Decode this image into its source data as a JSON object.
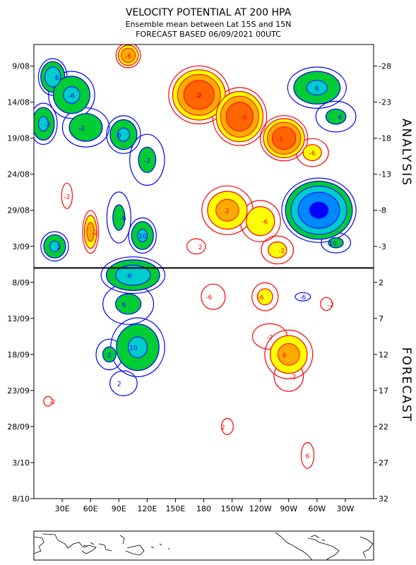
{
  "chart_data": {
    "type": "heatmap",
    "subtype": "hovmoller-filled-contour",
    "title": "VELOCITY POTENTIAL AT 200 HPA",
    "subtitle": "Ensemble mean between  Lat 15S and 15N",
    "subtitle2": "FORECAST  BASED 06/09/2021 00UTC",
    "x_ticks": [
      "30E",
      "60E",
      "90E",
      "120E",
      "150E",
      "180",
      "150W",
      "120W",
      "90W",
      "60W",
      "30W"
    ],
    "x_tick_lon": [
      30,
      60,
      90,
      120,
      150,
      180,
      210,
      240,
      270,
      300,
      330
    ],
    "xlim": [
      0,
      360
    ],
    "y_ticks_left": [
      "9/08",
      "14/08",
      "19/08",
      "24/08",
      "29/08",
      "3/09",
      "8/09",
      "13/09",
      "18/09",
      "23/09",
      "28/09",
      "3/10",
      "8/10"
    ],
    "y_ticks_right": [
      "-28",
      "-23",
      "-18",
      "-13",
      "-8",
      "-3",
      "2",
      "7",
      "12",
      "17",
      "22",
      "27",
      "32"
    ],
    "y_tick_day": [
      -28,
      -23,
      -18,
      -13,
      -8,
      -3,
      2,
      7,
      12,
      17,
      22,
      27,
      32
    ],
    "ylim": [
      -31,
      32
    ],
    "forecast_split_day": 0,
    "side_labels": {
      "top": "ANALYSIS",
      "bottom": "FORECAST"
    },
    "contour_levels": [
      -10,
      -8,
      -6,
      -4,
      -2,
      2,
      4,
      6,
      8,
      10,
      12
    ],
    "contour_labels": [
      "-6",
      "-2",
      "-6",
      "-2",
      "-6",
      "6",
      "-6",
      "2",
      "-2",
      "6",
      "-6",
      "-2",
      "6",
      "10",
      "2",
      "10",
      "6",
      "-6",
      "-2",
      "-6",
      "-2",
      "-6",
      "-2",
      "-6",
      "6",
      "2",
      "6",
      "-10",
      "-2",
      "2",
      "-6",
      "-2",
      "-2",
      "2",
      "-6",
      "-2",
      "2",
      "6",
      "-2",
      "2",
      "2"
    ],
    "colors": {
      "neg_1": "#00cc33",
      "neg_2": "#00cccc",
      "neg_3": "#0088ff",
      "neg_4": "#0000ff",
      "pos_1": "#ffff00",
      "pos_2": "#ffaa00",
      "pos_3": "#ff6600",
      "pos_4": "#ff2200",
      "neg_line": "#0000ff",
      "pos_line": "#ff0000",
      "split_line": "#000000"
    },
    "features": [
      {
        "sign": "neg",
        "lon": 20,
        "day": -26.5,
        "rx": 18,
        "ry": 3,
        "peak": 7
      },
      {
        "sign": "neg",
        "lon": 40,
        "day": -24,
        "rx": 30,
        "ry": 4,
        "peak": 6
      },
      {
        "sign": "neg",
        "lon": 10,
        "day": -20,
        "rx": 18,
        "ry": 3.5,
        "peak": 6
      },
      {
        "sign": "neg",
        "lon": 55,
        "day": -19.5,
        "rx": 32,
        "ry": 3.5,
        "peak": 5
      },
      {
        "sign": "neg",
        "lon": 95,
        "day": -18.5,
        "rx": 22,
        "ry": 3.2,
        "peak": 6
      },
      {
        "sign": "neg",
        "lon": 120,
        "day": -15,
        "rx": 26,
        "ry": 5,
        "peak": 4
      },
      {
        "sign": "neg",
        "lon": 90,
        "day": -7,
        "rx": 18,
        "ry": 5,
        "peak": 4
      },
      {
        "sign": "neg",
        "lon": 115,
        "day": -4.5,
        "rx": 18,
        "ry": 3,
        "peak": 6
      },
      {
        "sign": "neg",
        "lon": 22,
        "day": -3,
        "rx": 18,
        "ry": 2.5,
        "peak": 6
      },
      {
        "sign": "neg",
        "lon": 105,
        "day": 1,
        "rx": 40,
        "ry": 3,
        "peak": 7
      },
      {
        "sign": "neg",
        "lon": 100,
        "day": 5,
        "rx": 38,
        "ry": 4,
        "peak": 4
      },
      {
        "sign": "neg",
        "lon": 110,
        "day": 11,
        "rx": 35,
        "ry": 5,
        "peak": 6
      },
      {
        "sign": "neg",
        "lon": 80,
        "day": 12,
        "rx": 20,
        "ry": 3,
        "peak": 4
      },
      {
        "sign": "neg",
        "lon": 95,
        "day": 16,
        "rx": 25,
        "ry": 3,
        "peak": 3
      },
      {
        "sign": "neg",
        "lon": 300,
        "day": -25,
        "rx": 38,
        "ry": 3.5,
        "peak": 6
      },
      {
        "sign": "neg",
        "lon": 320,
        "day": -21,
        "rx": 30,
        "ry": 3,
        "peak": 4
      },
      {
        "sign": "neg",
        "lon": 302,
        "day": -8,
        "rx": 44,
        "ry": 5,
        "peak": 10
      },
      {
        "sign": "neg",
        "lon": 320,
        "day": -3.5,
        "rx": 22,
        "ry": 2,
        "peak": 4
      },
      {
        "sign": "neg",
        "lon": 285,
        "day": 4,
        "rx": 14,
        "ry": 1,
        "peak": 3
      },
      {
        "sign": "pos",
        "lon": 100,
        "day": -29.5,
        "rx": 15,
        "ry": 2,
        "peak": 8
      },
      {
        "sign": "pos",
        "lon": 175,
        "day": -24,
        "rx": 36,
        "ry": 4.5,
        "peak": 10
      },
      {
        "sign": "pos",
        "lon": 218,
        "day": -21,
        "rx": 32,
        "ry": 4.5,
        "peak": 10
      },
      {
        "sign": "pos",
        "lon": 265,
        "day": -18,
        "rx": 28,
        "ry": 3.5,
        "peak": 10
      },
      {
        "sign": "pos",
        "lon": 295,
        "day": -16,
        "rx": 22,
        "ry": 2.5,
        "peak": 5
      },
      {
        "sign": "pos",
        "lon": 205,
        "day": -8,
        "rx": 32,
        "ry": 4,
        "peak": 7
      },
      {
        "sign": "pos",
        "lon": 240,
        "day": -6.5,
        "rx": 26,
        "ry": 3.5,
        "peak": 6
      },
      {
        "sign": "pos",
        "lon": 258,
        "day": -2.5,
        "rx": 22,
        "ry": 2.5,
        "peak": 5
      },
      {
        "sign": "pos",
        "lon": 60,
        "day": -5,
        "rx": 10,
        "ry": 3.5,
        "peak": 7
      },
      {
        "sign": "pos",
        "lon": 35,
        "day": -10,
        "rx": 8,
        "ry": 2.5,
        "peak": 4
      },
      {
        "sign": "pos",
        "lon": 172,
        "day": -3,
        "rx": 14,
        "ry": 1.5,
        "peak": 4
      },
      {
        "sign": "pos",
        "lon": 245,
        "day": 4,
        "rx": 18,
        "ry": 2.5,
        "peak": 5
      },
      {
        "sign": "pos",
        "lon": 190,
        "day": 4,
        "rx": 18,
        "ry": 2.5,
        "peak": 4
      },
      {
        "sign": "pos",
        "lon": 270,
        "day": 12,
        "rx": 30,
        "ry": 4,
        "peak": 7
      },
      {
        "sign": "pos",
        "lon": 250,
        "day": 9.5,
        "rx": 26,
        "ry": 2.5,
        "peak": 4
      },
      {
        "sign": "pos",
        "lon": 270,
        "day": 15,
        "rx": 22,
        "ry": 3,
        "peak": 4
      },
      {
        "sign": "pos",
        "lon": 310,
        "day": 5,
        "rx": 14,
        "ry": 2,
        "peak": 2.5
      },
      {
        "sign": "pos",
        "lon": 205,
        "day": 22,
        "rx": 14,
        "ry": 2.5,
        "peak": 2.5
      },
      {
        "sign": "pos",
        "lon": 290,
        "day": 26,
        "rx": 15,
        "ry": 4,
        "peak": 2.5
      },
      {
        "sign": "pos",
        "lon": 15,
        "day": 18.5,
        "rx": 10,
        "ry": 1.5,
        "peak": 2.5
      }
    ]
  }
}
